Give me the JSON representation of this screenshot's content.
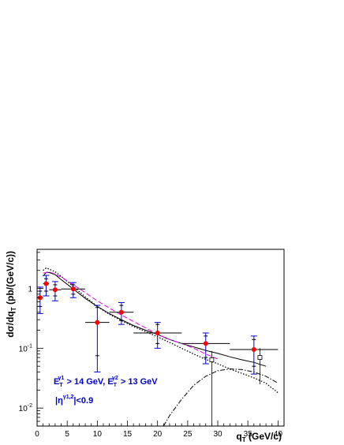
{
  "chart_data": {
    "type": "scatter",
    "xlabel": "q",
    "xlabel_sub": "T",
    "xlabel_unit": "(GeV/c)",
    "ylabel": "dσ/dq",
    "ylabel_sub": "T",
    "ylabel_unit": "(pb/(GeV/c))",
    "xlim": [
      0,
      41
    ],
    "ylim": [
      0.005,
      4.5
    ],
    "yscale": "log",
    "x_ticks": [
      "0",
      "5",
      "10",
      "15",
      "20",
      "25",
      "30",
      "35",
      "40"
    ],
    "y_ticks": [
      {
        "base": "10",
        "exp": "-2"
      },
      {
        "base": "10",
        "exp": "-1"
      },
      {
        "base": "1",
        "exp": ""
      }
    ],
    "colors": {
      "points": "#ff0000",
      "errors": "#0000cc",
      "dashed": "#e000e0",
      "annotation": "#0000cc",
      "frame": "#000000"
    },
    "annotation": {
      "line1": {
        "e1": "E",
        "e1_sup": "γ1",
        "e1_sub": "T",
        "e1_rest": " > 14 GeV, ",
        "e2": "E",
        "e2_sup": "γ2",
        "e2_sub": "T",
        "e2_rest": " > 13 GeV"
      },
      "line2": {
        "pre": "|η",
        "sup": "γ1,2",
        "rest": "|<0.9"
      }
    },
    "data_points": [
      {
        "x": 0.5,
        "xerr": 0.5,
        "y": 0.7,
        "ylo": 0.38,
        "yhi": 1.05,
        "ylo_in": 0.5,
        "yhi_in": 0.9
      },
      {
        "x": 1.5,
        "xerr": 0.5,
        "y": 1.2,
        "ylo": 0.75,
        "yhi": 1.65,
        "ylo_in": 0.9,
        "yhi_in": 1.45
      },
      {
        "x": 3.0,
        "xerr": 1.0,
        "y": 0.95,
        "ylo": 0.62,
        "yhi": 1.3,
        "ylo_in": 0.75,
        "yhi_in": 1.15
      },
      {
        "x": 6.0,
        "xerr": 2.0,
        "y": 0.98,
        "ylo": 0.7,
        "yhi": 1.25,
        "ylo_in": 0.8,
        "yhi_in": 1.15
      },
      {
        "x": 10.0,
        "xerr": 2.0,
        "y": 0.27,
        "ylo": 0.04,
        "yhi": 0.52,
        "ylo_in": 0.075,
        "yhi_in": 0.48
      },
      {
        "x": 14.0,
        "xerr": 2.0,
        "y": 0.4,
        "ylo": 0.25,
        "yhi": 0.58,
        "ylo_in": 0.29,
        "yhi_in": 0.52
      },
      {
        "x": 20.0,
        "xerr": 4.0,
        "y": 0.18,
        "ylo": 0.1,
        "yhi": 0.27,
        "ylo_in": 0.12,
        "yhi_in": 0.25
      },
      {
        "x": 28.0,
        "xerr": 4.0,
        "y": 0.12,
        "ylo": 0.055,
        "yhi": 0.18,
        "ylo_in": 0.07,
        "yhi_in": 0.16
      },
      {
        "x": 36.0,
        "xerr": 4.0,
        "y": 0.095,
        "ylo": 0.037,
        "yhi": 0.16,
        "ylo_in": 0.05,
        "yhi_in": 0.14
      }
    ],
    "open_squares": [
      {
        "x": 29.0,
        "y": 0.064,
        "ylo": 0.005,
        "yhi": 0.09
      },
      {
        "x": 37.0,
        "y": 0.07,
        "ylo": 0.025,
        "yhi": 0.1
      }
    ],
    "series": [
      {
        "style": "solid",
        "color": "#000000",
        "x": [
          1,
          1.5,
          2,
          3,
          4,
          6,
          8,
          10,
          12,
          14,
          16,
          18,
          20,
          22,
          24,
          26,
          28,
          30,
          32,
          34,
          36,
          38
        ],
        "y": [
          1.6,
          1.85,
          1.85,
          1.7,
          1.4,
          0.98,
          0.68,
          0.5,
          0.38,
          0.3,
          0.24,
          0.2,
          0.17,
          0.14,
          0.12,
          0.105,
          0.092,
          0.082,
          0.072,
          0.064,
          0.058,
          0.05
        ]
      },
      {
        "style": "dotted",
        "color": "#000000",
        "x": [
          1,
          1.5,
          2,
          3,
          4,
          6,
          8,
          10,
          12,
          14,
          16,
          18,
          20,
          22,
          24,
          26,
          28,
          30,
          32,
          34,
          36,
          38,
          40
        ],
        "y": [
          2.0,
          2.2,
          2.1,
          1.9,
          1.6,
          1.08,
          0.72,
          0.5,
          0.37,
          0.29,
          0.23,
          0.19,
          0.155,
          0.125,
          0.1,
          0.08,
          0.065,
          0.055,
          0.045,
          0.038,
          0.032,
          0.026,
          0.018
        ]
      },
      {
        "style": "dashed",
        "color": "#e000e0",
        "x": [
          1,
          2,
          4,
          6,
          8,
          10,
          12,
          14,
          16,
          18,
          20,
          22,
          24,
          26,
          28,
          30
        ],
        "y": [
          1.8,
          1.9,
          1.55,
          1.15,
          0.85,
          0.62,
          0.47,
          0.36,
          0.28,
          0.22,
          0.17,
          0.14,
          0.12,
          0.1,
          0.08,
          0.066
        ]
      },
      {
        "style": "dashdot",
        "color": "#000000",
        "x": [
          21,
          22,
          24,
          26,
          28,
          30,
          32,
          34,
          36,
          38,
          40
        ],
        "y": [
          0.005,
          0.0075,
          0.014,
          0.024,
          0.034,
          0.042,
          0.045,
          0.044,
          0.04,
          0.034,
          0.026
        ]
      }
    ]
  }
}
